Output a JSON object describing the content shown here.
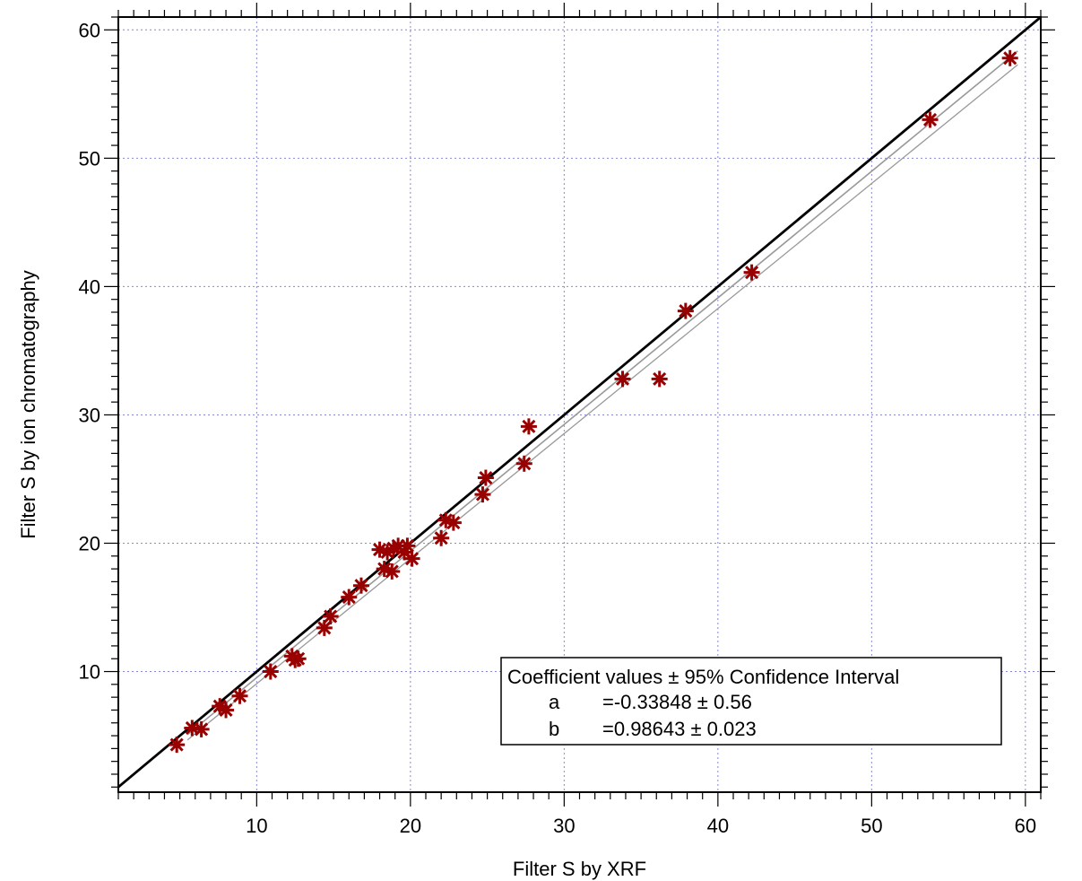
{
  "chart_data": {
    "type": "scatter",
    "xlabel": "Filter S by XRF",
    "ylabel": "Filter S by ion chromatography",
    "xlim": [
      1,
      61
    ],
    "ylim": [
      0.6,
      61
    ],
    "x_ticks": [
      10,
      20,
      30,
      40,
      50,
      60
    ],
    "y_ticks": [
      10,
      20,
      30,
      40,
      50,
      60
    ],
    "grid": true,
    "marker": "asterisk",
    "colors": {
      "points": "#990000",
      "one_to_one_line": "#000000",
      "fit_lines": "#999999",
      "grid": "#8888dd"
    },
    "points": [
      {
        "x": 4.8,
        "y": 4.3
      },
      {
        "x": 5.8,
        "y": 5.6
      },
      {
        "x": 6.4,
        "y": 5.5
      },
      {
        "x": 7.6,
        "y": 7.3
      },
      {
        "x": 8.0,
        "y": 7.0
      },
      {
        "x": 8.9,
        "y": 8.1
      },
      {
        "x": 10.9,
        "y": 10.0
      },
      {
        "x": 12.3,
        "y": 11.2
      },
      {
        "x": 12.5,
        "y": 10.9
      },
      {
        "x": 12.7,
        "y": 11.0
      },
      {
        "x": 14.4,
        "y": 13.4
      },
      {
        "x": 14.8,
        "y": 14.3
      },
      {
        "x": 16.0,
        "y": 15.8
      },
      {
        "x": 16.8,
        "y": 16.7
      },
      {
        "x": 18.0,
        "y": 19.5
      },
      {
        "x": 18.3,
        "y": 18.0
      },
      {
        "x": 18.5,
        "y": 19.3
      },
      {
        "x": 18.8,
        "y": 17.8
      },
      {
        "x": 18.9,
        "y": 19.6
      },
      {
        "x": 19.2,
        "y": 19.8
      },
      {
        "x": 19.6,
        "y": 19.3
      },
      {
        "x": 19.8,
        "y": 19.8
      },
      {
        "x": 20.1,
        "y": 18.8
      },
      {
        "x": 22.0,
        "y": 20.4
      },
      {
        "x": 22.3,
        "y": 21.8
      },
      {
        "x": 22.8,
        "y": 21.6
      },
      {
        "x": 24.7,
        "y": 23.8
      },
      {
        "x": 24.9,
        "y": 25.1
      },
      {
        "x": 27.4,
        "y": 26.2
      },
      {
        "x": 27.7,
        "y": 29.1
      },
      {
        "x": 33.8,
        "y": 32.8
      },
      {
        "x": 36.2,
        "y": 32.8
      },
      {
        "x": 37.9,
        "y": 38.1
      },
      {
        "x": 42.2,
        "y": 41.1
      },
      {
        "x": 53.8,
        "y": 53.0
      },
      {
        "x": 59.0,
        "y": 57.8
      }
    ],
    "fit": {
      "a": -0.33848,
      "b": 0.98643,
      "x_range": [
        5.5,
        59.5
      ]
    },
    "one_to_one": {
      "x_range": [
        1,
        61
      ]
    },
    "legend": {
      "title": "Coefficient values ± 95% Confidence Interval",
      "rows": [
        {
          "name": "a",
          "value": "=-0.33848 ± 0.56"
        },
        {
          "name": "b",
          "value": "=0.98643 ± 0.023"
        }
      ],
      "placement": "bottom-right"
    }
  }
}
